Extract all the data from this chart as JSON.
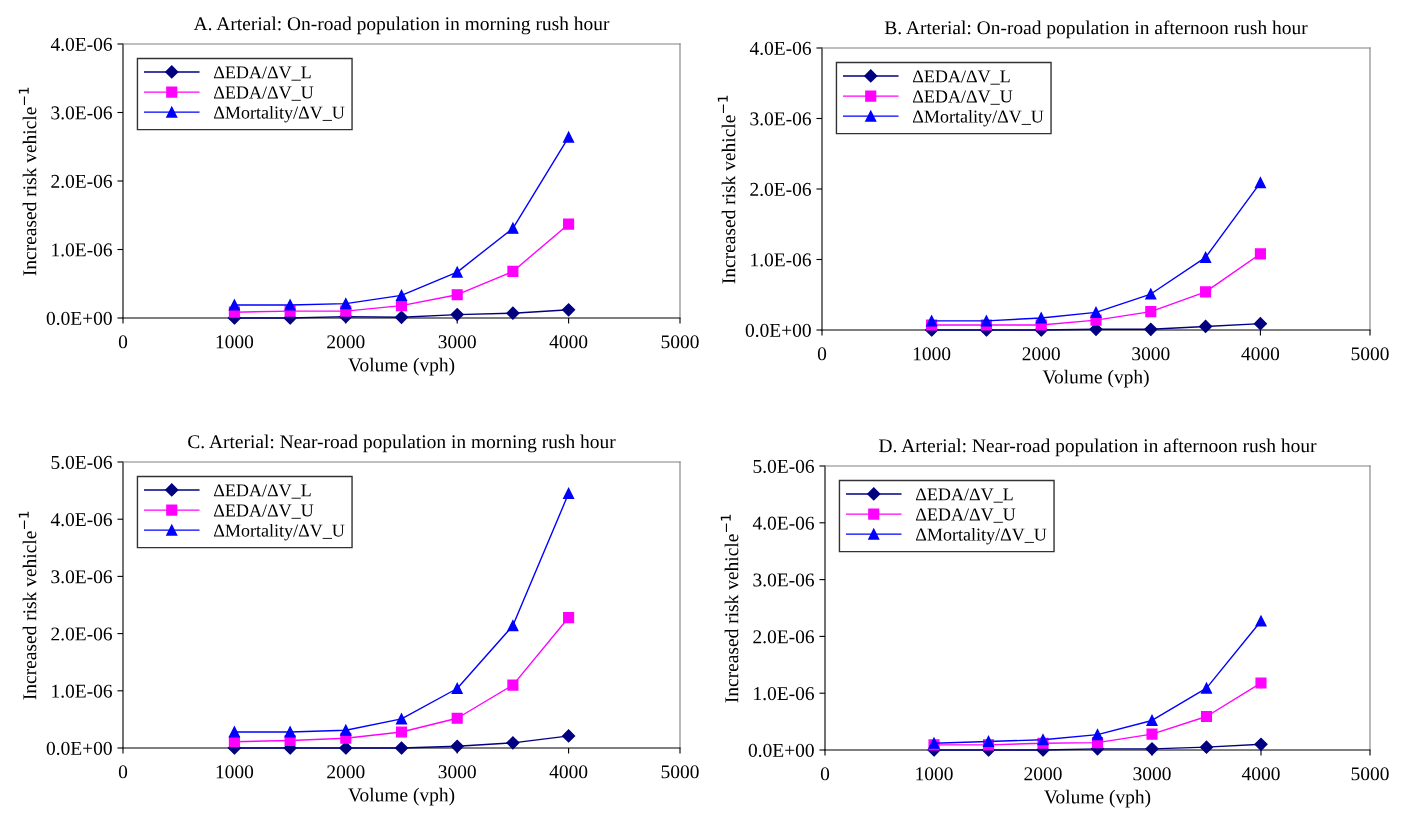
{
  "chart_data": [
    {
      "type": "line",
      "title": "A. Arterial: On-road population in morning rush hour",
      "xlabel": "Volume (vph)",
      "ylabel": "Increased risk vehicle$^{−1}$",
      "x": [
        1000,
        1500,
        2000,
        2500,
        3000,
        3500,
        4000
      ],
      "xlim": [
        0,
        5000
      ],
      "xticks": [
        0,
        1000,
        2000,
        3000,
        4000,
        5000
      ],
      "ylim": [
        0,
        4e-06
      ],
      "yticks": [
        {
          "value": 0,
          "label": "0.0E+00"
        },
        {
          "value": 1e-06,
          "label": "1.0E-06"
        },
        {
          "value": 2e-06,
          "label": "2.0E-06"
        },
        {
          "value": 3e-06,
          "label": "3.0E-06"
        },
        {
          "value": 4e-06,
          "label": "4.0E-06"
        }
      ],
      "grid": false,
      "legend": "top left",
      "series": [
        {
          "name": "ΔEDA/ΔV_L",
          "color": "#000080",
          "marker": "diamond",
          "values": [
            0,
            0,
            2e-08,
            1e-08,
            5e-08,
            7e-08,
            1.2e-07
          ]
        },
        {
          "name": "ΔEDA/ΔV_U",
          "color": "#ff00ff",
          "marker": "square",
          "values": [
            8.5e-08,
            1e-07,
            1e-07,
            1.8e-07,
            3.4e-07,
            6.8e-07,
            1.37e-06
          ]
        },
        {
          "name": "ΔMortality/ΔV_U",
          "color": "#0000ff",
          "marker": "triangle",
          "values": [
            1.9e-07,
            1.9e-07,
            2.1e-07,
            3.3e-07,
            6.7e-07,
            1.31e-06,
            2.64e-06
          ]
        }
      ]
    },
    {
      "type": "line",
      "title": "B. Arterial: On-road population in afternoon rush hour",
      "xlabel": "Volume (vph)",
      "ylabel": "Increased risk vehicle$^{−1}$",
      "x": [
        1000,
        1500,
        2000,
        2500,
        3000,
        3500,
        4000
      ],
      "xlim": [
        0,
        5000
      ],
      "xticks": [
        0,
        1000,
        2000,
        3000,
        4000,
        5000
      ],
      "ylim": [
        0,
        4e-06
      ],
      "yticks": [
        {
          "value": 0,
          "label": "0.0E+00"
        },
        {
          "value": 1e-06,
          "label": "1.0E-06"
        },
        {
          "value": 2e-06,
          "label": "2.0E-06"
        },
        {
          "value": 3e-06,
          "label": "3.0E-06"
        },
        {
          "value": 4e-06,
          "label": "4.0E-06"
        }
      ],
      "grid": false,
      "legend": "top left",
      "series": [
        {
          "name": "ΔEDA/ΔV_L",
          "color": "#000080",
          "marker": "diamond",
          "values": [
            0,
            0,
            0,
            1e-08,
            1e-08,
            5e-08,
            9e-08
          ]
        },
        {
          "name": "ΔEDA/ΔV_U",
          "color": "#ff00ff",
          "marker": "square",
          "values": [
            7e-08,
            7e-08,
            7e-08,
            1.4e-07,
            2.6e-07,
            5.4e-07,
            1.08e-06
          ]
        },
        {
          "name": "ΔMortality/ΔV_U",
          "color": "#0000ff",
          "marker": "triangle",
          "values": [
            1.3e-07,
            1.3e-07,
            1.7e-07,
            2.5e-07,
            5.1e-07,
            1.03e-06,
            2.09e-06
          ]
        }
      ]
    },
    {
      "type": "line",
      "title": "C. Arterial: Near-road population in morning rush hour",
      "xlabel": "Volume (vph)",
      "ylabel": "Increased risk vehicle$^{−1}$",
      "x": [
        1000,
        1500,
        2000,
        2500,
        3000,
        3500,
        4000
      ],
      "xlim": [
        0,
        5000
      ],
      "xticks": [
        0,
        1000,
        2000,
        3000,
        4000,
        5000
      ],
      "ylim": [
        0,
        5e-06
      ],
      "yticks": [
        {
          "value": 0,
          "label": "0.0E+00"
        },
        {
          "value": 1e-06,
          "label": "1.0E-06"
        },
        {
          "value": 2e-06,
          "label": "2.0E-06"
        },
        {
          "value": 3e-06,
          "label": "3.0E-06"
        },
        {
          "value": 4e-06,
          "label": "4.0E-06"
        },
        {
          "value": 5e-06,
          "label": "5.0E-06"
        }
      ],
      "grid": false,
      "legend": "top left",
      "series": [
        {
          "name": "ΔEDA/ΔV_L",
          "color": "#000080",
          "marker": "diamond",
          "values": [
            0,
            0,
            0,
            0,
            3e-08,
            9e-08,
            2.1e-07
          ]
        },
        {
          "name": "ΔEDA/ΔV_U",
          "color": "#ff00ff",
          "marker": "square",
          "values": [
            1.1e-07,
            1.3e-07,
            1.7e-07,
            2.8e-07,
            5.2e-07,
            1.1e-06,
            2.28e-06
          ]
        },
        {
          "name": "ΔMortality/ΔV_U",
          "color": "#0000ff",
          "marker": "triangle",
          "values": [
            2.8e-07,
            2.8e-07,
            3.1e-07,
            5.1e-07,
            1.04e-06,
            2.14e-06,
            4.45e-06
          ]
        }
      ]
    },
    {
      "type": "line",
      "title": "D. Arterial: Near-road population in afternoon rush hour",
      "xlabel": "Volume (vph)",
      "ylabel": "Increased risk vehicle$^{−1}$",
      "x": [
        1000,
        1500,
        2000,
        2500,
        3000,
        3500,
        4000
      ],
      "xlim": [
        0,
        5000
      ],
      "xticks": [
        0,
        1000,
        2000,
        3000,
        4000,
        5000
      ],
      "ylim": [
        0,
        5e-06
      ],
      "yticks": [
        {
          "value": 0,
          "label": "0.0E+00"
        },
        {
          "value": 1e-06,
          "label": "1.0E-06"
        },
        {
          "value": 2e-06,
          "label": "2.0E-06"
        },
        {
          "value": 3e-06,
          "label": "3.0E-06"
        },
        {
          "value": 4e-06,
          "label": "4.0E-06"
        },
        {
          "value": 5e-06,
          "label": "5.0E-06"
        }
      ],
      "grid": false,
      "legend": "top left",
      "series": [
        {
          "name": "ΔEDA/ΔV_L",
          "color": "#000080",
          "marker": "diamond",
          "values": [
            0,
            0,
            0,
            2e-08,
            2e-08,
            5e-08,
            1e-07
          ]
        },
        {
          "name": "ΔEDA/ΔV_U",
          "color": "#ff00ff",
          "marker": "square",
          "values": [
            9e-08,
            9e-08,
            1.2e-07,
            1.3e-07,
            2.8e-07,
            5.9e-07,
            1.18e-06
          ]
        },
        {
          "name": "ΔMortality/ΔV_U",
          "color": "#0000ff",
          "marker": "triangle",
          "values": [
            1.2e-07,
            1.5e-07,
            1.8e-07,
            2.7e-07,
            5.2e-07,
            1.09e-06,
            2.27e-06
          ]
        }
      ]
    }
  ]
}
